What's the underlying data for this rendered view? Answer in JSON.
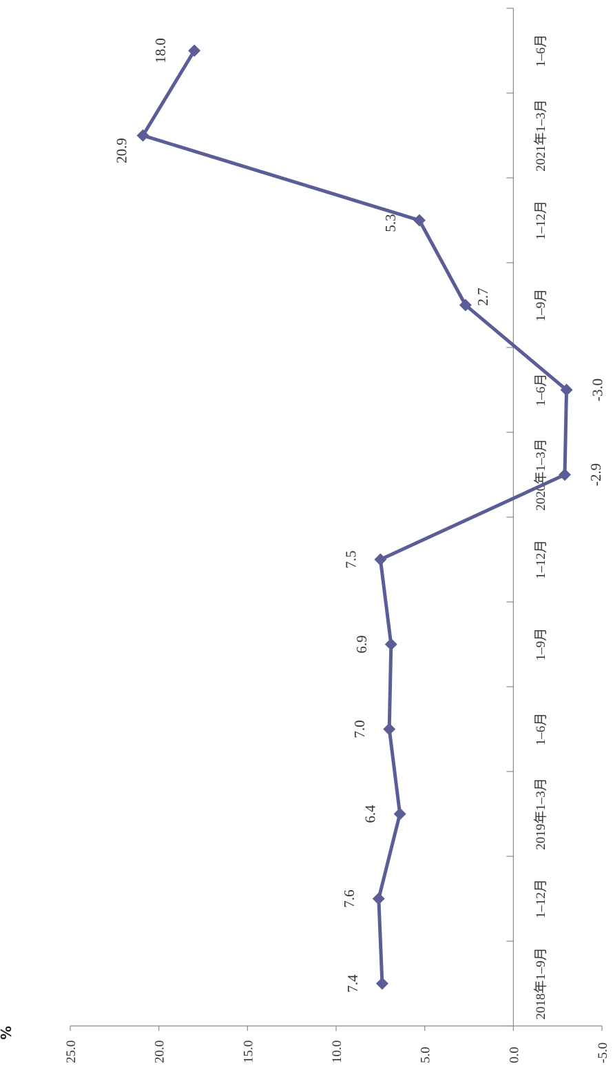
{
  "chart_data": {
    "type": "line",
    "ylabel": "%",
    "ylim": [
      -5,
      25
    ],
    "yticks": [
      "25.0",
      "20.0",
      "15.0",
      "10.0",
      "5.0",
      "0.0",
      "-5.0"
    ],
    "categories": [
      "2018年1–9月",
      "1–12月",
      "2019年1–3月",
      "1–6月",
      "1–9月",
      "1–12月",
      "2020年1–3月",
      "1–6月",
      "1–9月",
      "1–12月",
      "2021年1–3月",
      "1–6月"
    ],
    "series": [
      {
        "values": [
          7.4,
          7.6,
          6.4,
          7.0,
          6.9,
          7.5,
          -2.9,
          -3.0,
          2.7,
          5.3,
          20.9,
          18.0
        ],
        "labels": [
          "7.4",
          "7.6",
          "6.4",
          "7.0",
          "6.9",
          "7.5",
          "-2.9",
          "-3.0",
          "2.7",
          "5.3",
          "20.9",
          "18.0"
        ],
        "color": "#5b5e96"
      }
    ],
    "grid": false,
    "legend": "none",
    "orientation": "rotated-90"
  }
}
